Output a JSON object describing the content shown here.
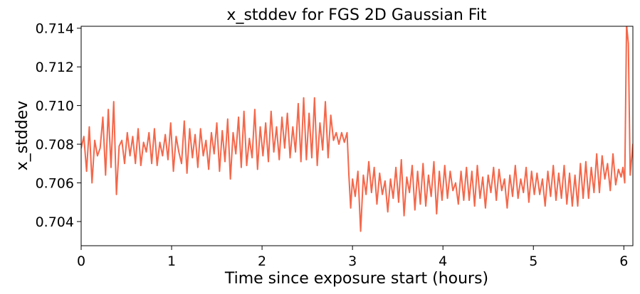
{
  "chart_data": {
    "type": "line",
    "title": "x_stddev for FGS 2D Gaussian Fit",
    "xlabel": "Time since exposure start (hours)",
    "ylabel": "x_stddev",
    "xlim": [
      0,
      6.1
    ],
    "ylim": [
      0.70275,
      0.7141
    ],
    "x_ticks": [
      {
        "value": 0,
        "label": "0"
      },
      {
        "value": 1,
        "label": "1"
      },
      {
        "value": 2,
        "label": "2"
      },
      {
        "value": 3,
        "label": "3"
      },
      {
        "value": 4,
        "label": "4"
      },
      {
        "value": 5,
        "label": "5"
      },
      {
        "value": 6,
        "label": "6"
      }
    ],
    "y_ticks": [
      {
        "value": 0.704,
        "label": "0.704"
      },
      {
        "value": 0.706,
        "label": "0.706"
      },
      {
        "value": 0.708,
        "label": "0.708"
      },
      {
        "value": 0.71,
        "label": "0.710"
      },
      {
        "value": 0.712,
        "label": "0.712"
      },
      {
        "value": 0.714,
        "label": "0.714"
      }
    ],
    "grid": false,
    "legend": "none",
    "series": [
      {
        "color": "#f4674a",
        "points": [
          [
            0.0,
            0.7078
          ],
          [
            0.03,
            0.7084
          ],
          [
            0.06,
            0.7066
          ],
          [
            0.09,
            0.7089
          ],
          [
            0.12,
            0.706
          ],
          [
            0.15,
            0.7082
          ],
          [
            0.18,
            0.7074
          ],
          [
            0.21,
            0.7078
          ],
          [
            0.24,
            0.7094
          ],
          [
            0.27,
            0.7064
          ],
          [
            0.3,
            0.7098
          ],
          [
            0.33,
            0.7068
          ],
          [
            0.36,
            0.7102
          ],
          [
            0.39,
            0.7054
          ],
          [
            0.42,
            0.7079
          ],
          [
            0.45,
            0.7082
          ],
          [
            0.48,
            0.707
          ],
          [
            0.51,
            0.7086
          ],
          [
            0.54,
            0.7074
          ],
          [
            0.57,
            0.7084
          ],
          [
            0.6,
            0.707
          ],
          [
            0.63,
            0.7088
          ],
          [
            0.66,
            0.7069
          ],
          [
            0.69,
            0.7081
          ],
          [
            0.72,
            0.7076
          ],
          [
            0.75,
            0.7086
          ],
          [
            0.78,
            0.707
          ],
          [
            0.81,
            0.7088
          ],
          [
            0.84,
            0.7069
          ],
          [
            0.87,
            0.7081
          ],
          [
            0.9,
            0.7074
          ],
          [
            0.93,
            0.7085
          ],
          [
            0.96,
            0.7072
          ],
          [
            0.99,
            0.7091
          ],
          [
            1.02,
            0.7066
          ],
          [
            1.05,
            0.7084
          ],
          [
            1.08,
            0.7076
          ],
          [
            1.11,
            0.707
          ],
          [
            1.14,
            0.7092
          ],
          [
            1.17,
            0.7065
          ],
          [
            1.2,
            0.7088
          ],
          [
            1.23,
            0.7073
          ],
          [
            1.26,
            0.7085
          ],
          [
            1.29,
            0.7068
          ],
          [
            1.32,
            0.7088
          ],
          [
            1.35,
            0.7074
          ],
          [
            1.38,
            0.7082
          ],
          [
            1.41,
            0.7067
          ],
          [
            1.44,
            0.7086
          ],
          [
            1.47,
            0.7075
          ],
          [
            1.5,
            0.7091
          ],
          [
            1.53,
            0.7066
          ],
          [
            1.56,
            0.7087
          ],
          [
            1.59,
            0.7071
          ],
          [
            1.62,
            0.7093
          ],
          [
            1.65,
            0.7062
          ],
          [
            1.68,
            0.7086
          ],
          [
            1.71,
            0.7075
          ],
          [
            1.74,
            0.7094
          ],
          [
            1.77,
            0.7068
          ],
          [
            1.8,
            0.7097
          ],
          [
            1.83,
            0.7069
          ],
          [
            1.86,
            0.7083
          ],
          [
            1.89,
            0.7073
          ],
          [
            1.92,
            0.7098
          ],
          [
            1.95,
            0.7067
          ],
          [
            1.98,
            0.7089
          ],
          [
            2.01,
            0.7074
          ],
          [
            2.04,
            0.7091
          ],
          [
            2.07,
            0.7071
          ],
          [
            2.1,
            0.7097
          ],
          [
            2.13,
            0.7076
          ],
          [
            2.16,
            0.7089
          ],
          [
            2.19,
            0.7072
          ],
          [
            2.22,
            0.7094
          ],
          [
            2.25,
            0.7078
          ],
          [
            2.28,
            0.7096
          ],
          [
            2.31,
            0.7073
          ],
          [
            2.34,
            0.7089
          ],
          [
            2.37,
            0.7076
          ],
          [
            2.4,
            0.7101
          ],
          [
            2.43,
            0.7071
          ],
          [
            2.46,
            0.7104
          ],
          [
            2.49,
            0.7072
          ],
          [
            2.52,
            0.7096
          ],
          [
            2.55,
            0.7073
          ],
          [
            2.58,
            0.7104
          ],
          [
            2.61,
            0.7069
          ],
          [
            2.64,
            0.7091
          ],
          [
            2.67,
            0.7077
          ],
          [
            2.7,
            0.7102
          ],
          [
            2.73,
            0.7073
          ],
          [
            2.76,
            0.7095
          ],
          [
            2.79,
            0.7082
          ],
          [
            2.82,
            0.7086
          ],
          [
            2.85,
            0.708
          ],
          [
            2.88,
            0.7086
          ],
          [
            2.91,
            0.7081
          ],
          [
            2.94,
            0.7086
          ],
          [
            2.96,
            0.7064
          ],
          [
            2.98,
            0.7047
          ],
          [
            3.0,
            0.7062
          ],
          [
            3.03,
            0.7053
          ],
          [
            3.06,
            0.7066
          ],
          [
            3.09,
            0.7035
          ],
          [
            3.12,
            0.7064
          ],
          [
            3.15,
            0.7054
          ],
          [
            3.18,
            0.7071
          ],
          [
            3.21,
            0.7055
          ],
          [
            3.24,
            0.7068
          ],
          [
            3.27,
            0.7049
          ],
          [
            3.3,
            0.7065
          ],
          [
            3.33,
            0.7054
          ],
          [
            3.36,
            0.7061
          ],
          [
            3.39,
            0.7045
          ],
          [
            3.42,
            0.7062
          ],
          [
            3.45,
            0.7052
          ],
          [
            3.48,
            0.7068
          ],
          [
            3.51,
            0.705
          ],
          [
            3.54,
            0.7072
          ],
          [
            3.57,
            0.7043
          ],
          [
            3.6,
            0.7063
          ],
          [
            3.63,
            0.7055
          ],
          [
            3.66,
            0.7069
          ],
          [
            3.69,
            0.7046
          ],
          [
            3.72,
            0.7066
          ],
          [
            3.75,
            0.7049
          ],
          [
            3.78,
            0.707
          ],
          [
            3.81,
            0.7048
          ],
          [
            3.84,
            0.7064
          ],
          [
            3.87,
            0.7053
          ],
          [
            3.9,
            0.7071
          ],
          [
            3.93,
            0.7044
          ],
          [
            3.96,
            0.7066
          ],
          [
            3.99,
            0.7051
          ],
          [
            4.02,
            0.7069
          ],
          [
            4.05,
            0.7052
          ],
          [
            4.08,
            0.7066
          ],
          [
            4.11,
            0.7056
          ],
          [
            4.14,
            0.706
          ],
          [
            4.17,
            0.7049
          ],
          [
            4.2,
            0.7066
          ],
          [
            4.23,
            0.7051
          ],
          [
            4.26,
            0.7068
          ],
          [
            4.29,
            0.7051
          ],
          [
            4.32,
            0.7066
          ],
          [
            4.35,
            0.7048
          ],
          [
            4.38,
            0.7069
          ],
          [
            4.41,
            0.7052
          ],
          [
            4.44,
            0.7063
          ],
          [
            4.47,
            0.7047
          ],
          [
            4.5,
            0.7064
          ],
          [
            4.53,
            0.7055
          ],
          [
            4.56,
            0.7068
          ],
          [
            4.59,
            0.7051
          ],
          [
            4.62,
            0.7067
          ],
          [
            4.65,
            0.7056
          ],
          [
            4.68,
            0.7062
          ],
          [
            4.71,
            0.7047
          ],
          [
            4.74,
            0.7064
          ],
          [
            4.77,
            0.7053
          ],
          [
            4.8,
            0.7069
          ],
          [
            4.83,
            0.7052
          ],
          [
            4.86,
            0.7062
          ],
          [
            4.89,
            0.7055
          ],
          [
            4.92,
            0.7068
          ],
          [
            4.95,
            0.705
          ],
          [
            4.98,
            0.7066
          ],
          [
            5.01,
            0.7054
          ],
          [
            5.04,
            0.7065
          ],
          [
            5.07,
            0.7054
          ],
          [
            5.1,
            0.7062
          ],
          [
            5.13,
            0.7048
          ],
          [
            5.16,
            0.7066
          ],
          [
            5.19,
            0.7053
          ],
          [
            5.22,
            0.7069
          ],
          [
            5.25,
            0.7051
          ],
          [
            5.28,
            0.7065
          ],
          [
            5.31,
            0.7052
          ],
          [
            5.34,
            0.7069
          ],
          [
            5.37,
            0.7049
          ],
          [
            5.4,
            0.7065
          ],
          [
            5.43,
            0.7048
          ],
          [
            5.46,
            0.7064
          ],
          [
            5.49,
            0.7048
          ],
          [
            5.52,
            0.707
          ],
          [
            5.55,
            0.7052
          ],
          [
            5.58,
            0.7071
          ],
          [
            5.61,
            0.7052
          ],
          [
            5.64,
            0.7068
          ],
          [
            5.67,
            0.7055
          ],
          [
            5.7,
            0.7075
          ],
          [
            5.73,
            0.7055
          ],
          [
            5.76,
            0.7074
          ],
          [
            5.79,
            0.7062
          ],
          [
            5.82,
            0.707
          ],
          [
            5.85,
            0.7056
          ],
          [
            5.88,
            0.7075
          ],
          [
            5.91,
            0.7059
          ],
          [
            5.94,
            0.7067
          ],
          [
            5.97,
            0.7063
          ],
          [
            5.99,
            0.7068
          ],
          [
            6.01,
            0.706
          ],
          [
            6.03,
            0.7142
          ],
          [
            6.05,
            0.7132
          ],
          [
            6.07,
            0.7064
          ],
          [
            6.1,
            0.708
          ]
        ]
      }
    ]
  }
}
